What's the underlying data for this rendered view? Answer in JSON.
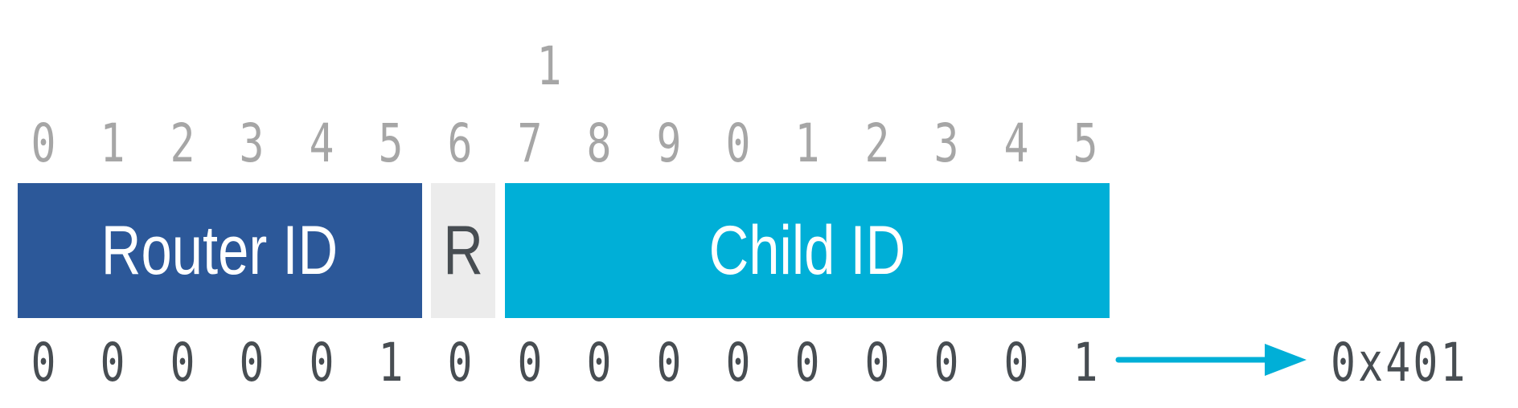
{
  "bit_index": {
    "tens_label": "1",
    "ones": [
      "0",
      "1",
      "2",
      "3",
      "4",
      "5",
      "6",
      "7",
      "8",
      "9",
      "0",
      "1",
      "2",
      "3",
      "4",
      "5"
    ]
  },
  "fields": {
    "router_id": {
      "label": "Router ID",
      "color": "#2c5899"
    },
    "reserved": {
      "label": "R",
      "color": "#ececec"
    },
    "child_id": {
      "label": "Child ID",
      "color": "#00afd7"
    }
  },
  "bit_values": [
    "0",
    "0",
    "0",
    "0",
    "0",
    "1",
    "0",
    "0",
    "0",
    "0",
    "0",
    "0",
    "0",
    "0",
    "0",
    "1"
  ],
  "result": {
    "hex": "0x401",
    "arrow_color": "#00afd7"
  }
}
